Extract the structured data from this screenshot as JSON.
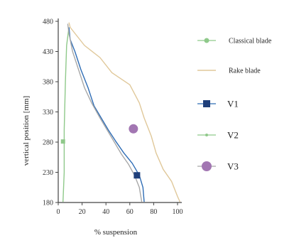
{
  "chart_data": {
    "type": "line",
    "xlabel": "% suspension",
    "ylabel": "vertical position [mm]",
    "xlim": [
      0,
      100
    ],
    "ylim": [
      180,
      480
    ],
    "xticks": [
      0,
      20,
      40,
      60,
      80,
      100
    ],
    "yticks": [
      180,
      230,
      280,
      330,
      380,
      430,
      480
    ],
    "legend_position": "right",
    "series": [
      {
        "name": "Classical blade",
        "kind": "line",
        "color": "#8fc98a",
        "points": [
          [
            4,
            181
          ],
          [
            5,
            230
          ],
          [
            5,
            300
          ],
          [
            6,
            380
          ],
          [
            7,
            440
          ],
          [
            9,
            470
          ]
        ]
      },
      {
        "name": "Rake blade",
        "kind": "line",
        "color": "#e0c89a",
        "points": [
          [
            9,
            478
          ],
          [
            10,
            470
          ],
          [
            22,
            440
          ],
          [
            35,
            420
          ],
          [
            45,
            395
          ],
          [
            60,
            375
          ],
          [
            68,
            345
          ],
          [
            72,
            320
          ],
          [
            78,
            290
          ],
          [
            82,
            262
          ],
          [
            88,
            235
          ],
          [
            95,
            215
          ],
          [
            100,
            190
          ],
          [
            102,
            181
          ]
        ]
      },
      {
        "name": "V1",
        "kind": "line",
        "color": "#2f6db5",
        "points": [
          [
            9,
            470
          ],
          [
            10,
            450
          ],
          [
            14,
            430
          ],
          [
            19,
            400
          ],
          [
            25,
            370
          ],
          [
            30,
            340
          ],
          [
            36,
            320
          ],
          [
            42,
            300
          ],
          [
            48,
            282
          ],
          [
            55,
            262
          ],
          [
            62,
            245
          ],
          [
            68,
            225
          ],
          [
            71,
            205
          ],
          [
            72,
            181
          ]
        ]
      },
      {
        "name": "V2",
        "kind": "line",
        "color": "#a8a8a8",
        "points": [
          [
            8,
            476
          ],
          [
            9,
            460
          ],
          [
            12,
            430
          ],
          [
            17,
            400
          ],
          [
            22,
            370
          ],
          [
            28,
            345
          ],
          [
            35,
            320
          ],
          [
            41,
            300
          ],
          [
            47,
            280
          ],
          [
            53,
            260
          ],
          [
            59,
            243
          ],
          [
            64,
            225
          ],
          [
            68,
            205
          ],
          [
            70,
            181
          ]
        ]
      },
      {
        "name": "V1-marker",
        "kind": "marker",
        "shape": "square",
        "color": "#1f3f7a",
        "points": [
          [
            66,
            225
          ]
        ]
      },
      {
        "name": "V2-marker",
        "kind": "marker",
        "shape": "small-square",
        "color": "#8fc98a",
        "points": [
          [
            4,
            281
          ]
        ]
      },
      {
        "name": "V3-marker",
        "kind": "marker",
        "shape": "circle",
        "color": "#a276b2",
        "points": [
          [
            63,
            302
          ]
        ]
      }
    ]
  },
  "legend": {
    "items": [
      {
        "label": "Classical blade",
        "style": "line-dot",
        "color": "#8fc98a",
        "size": "small"
      },
      {
        "label": "Rake blade",
        "style": "line",
        "color": "#e0c89a",
        "size": "small"
      },
      {
        "label": "V1",
        "style": "square",
        "color": "#1f3f7a",
        "size": "large"
      },
      {
        "label": "V2",
        "style": "line-dot",
        "color": "#8fc98a",
        "size": "large"
      },
      {
        "label": "V3",
        "style": "circle",
        "color": "#a276b2",
        "size": "large"
      }
    ]
  }
}
